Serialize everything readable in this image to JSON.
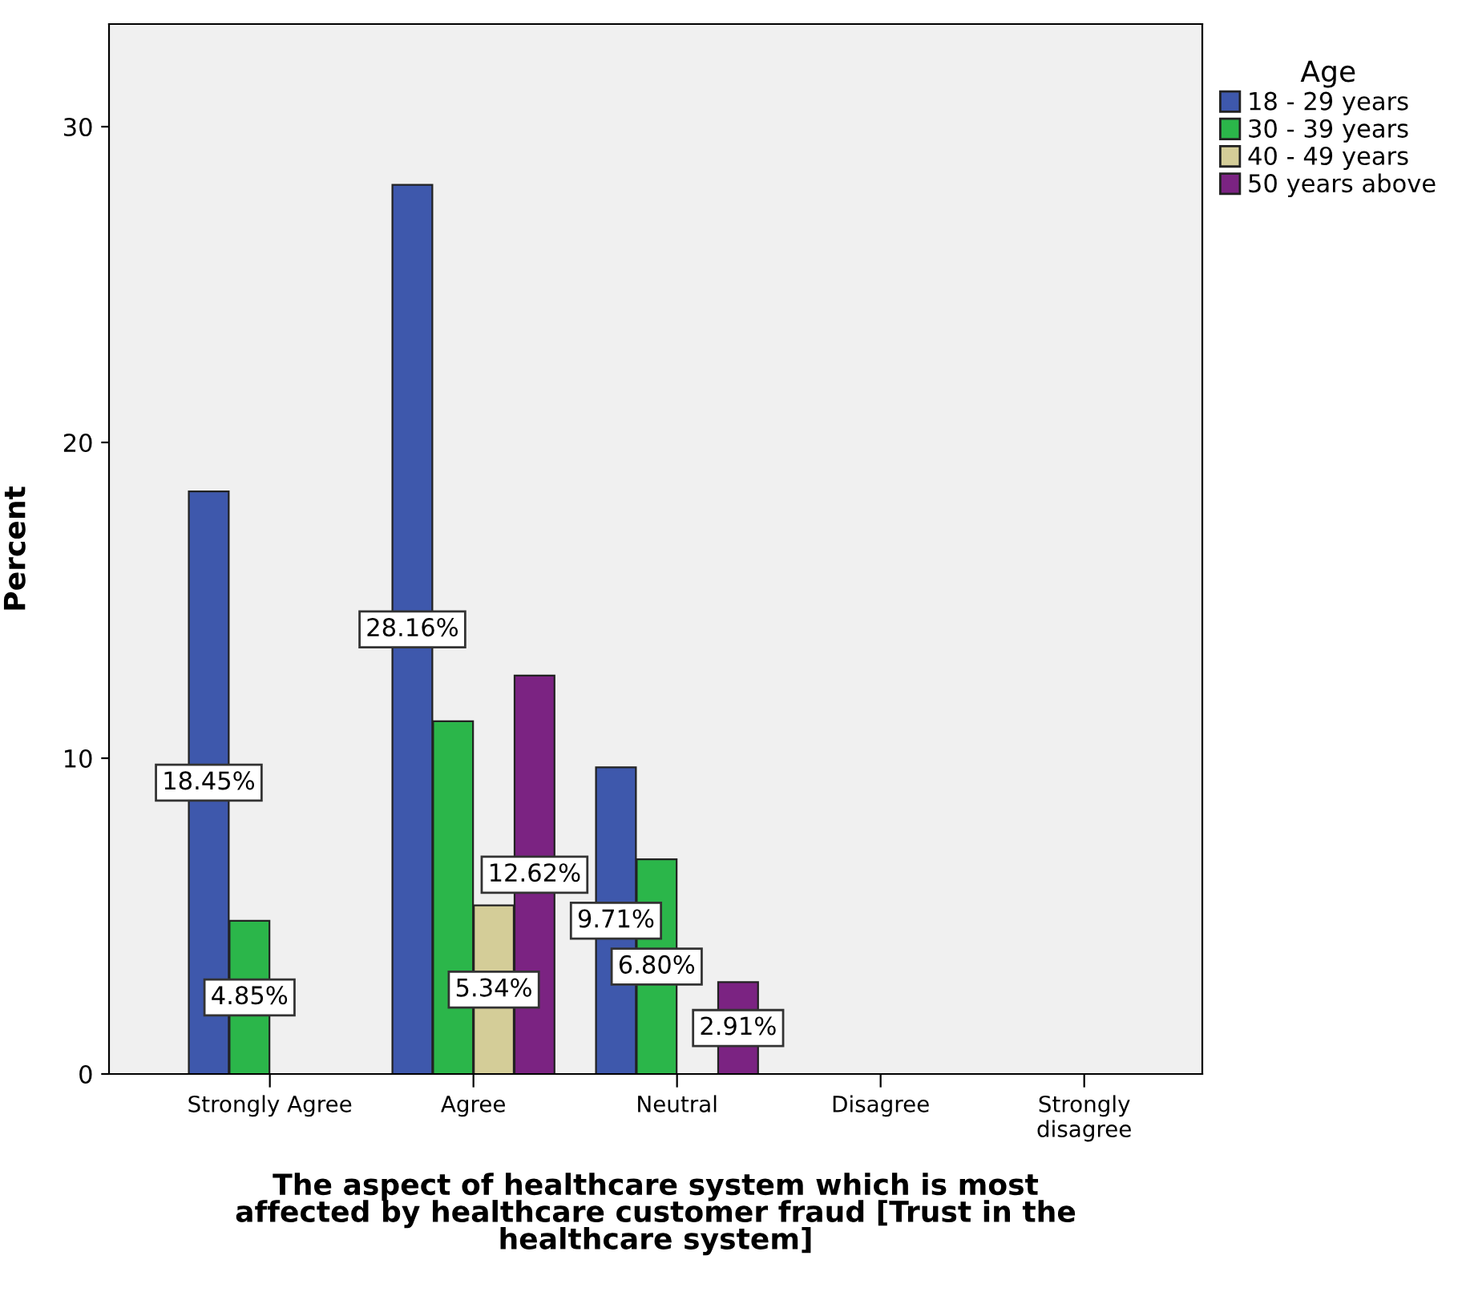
{
  "chart_data": {
    "type": "bar",
    "xlabel": "The aspect of healthcare system which is most\naffected by healthcare customer fraud [Trust in the\nhealthcare system]",
    "ylabel": "Percent",
    "legend_title": "Age",
    "categories": [
      "Strongly Agree",
      "Agree",
      "Neutral",
      "Disagree",
      "Strongly\ndisagree"
    ],
    "series": [
      {
        "name": "18 - 29 years",
        "color": "#3e58ac",
        "values": [
          18.45,
          28.16,
          9.71,
          null,
          null
        ],
        "value_labels": [
          "18.45%",
          "28.16%",
          "9.71%",
          null,
          null
        ]
      },
      {
        "name": "30 - 39 years",
        "color": "#2bb64a",
        "values": [
          4.85,
          11.17,
          6.8,
          null,
          null
        ],
        "value_labels": [
          "4.85%",
          null,
          "6.80%",
          null,
          null
        ]
      },
      {
        "name": "40 - 49 years",
        "color": "#d4cd98",
        "values": [
          null,
          5.34,
          null,
          null,
          null
        ],
        "value_labels": [
          null,
          "5.34%",
          null,
          null,
          null
        ]
      },
      {
        "name": "50 years above",
        "color": "#7b2382",
        "values": [
          null,
          12.62,
          2.91,
          null,
          null
        ],
        "value_labels": [
          null,
          "12.62%",
          "2.91%",
          null,
          null
        ]
      }
    ],
    "ylim": [
      0,
      33.25
    ],
    "yticks": [
      0,
      10,
      20,
      30
    ],
    "grid": false,
    "legend": "top right"
  }
}
